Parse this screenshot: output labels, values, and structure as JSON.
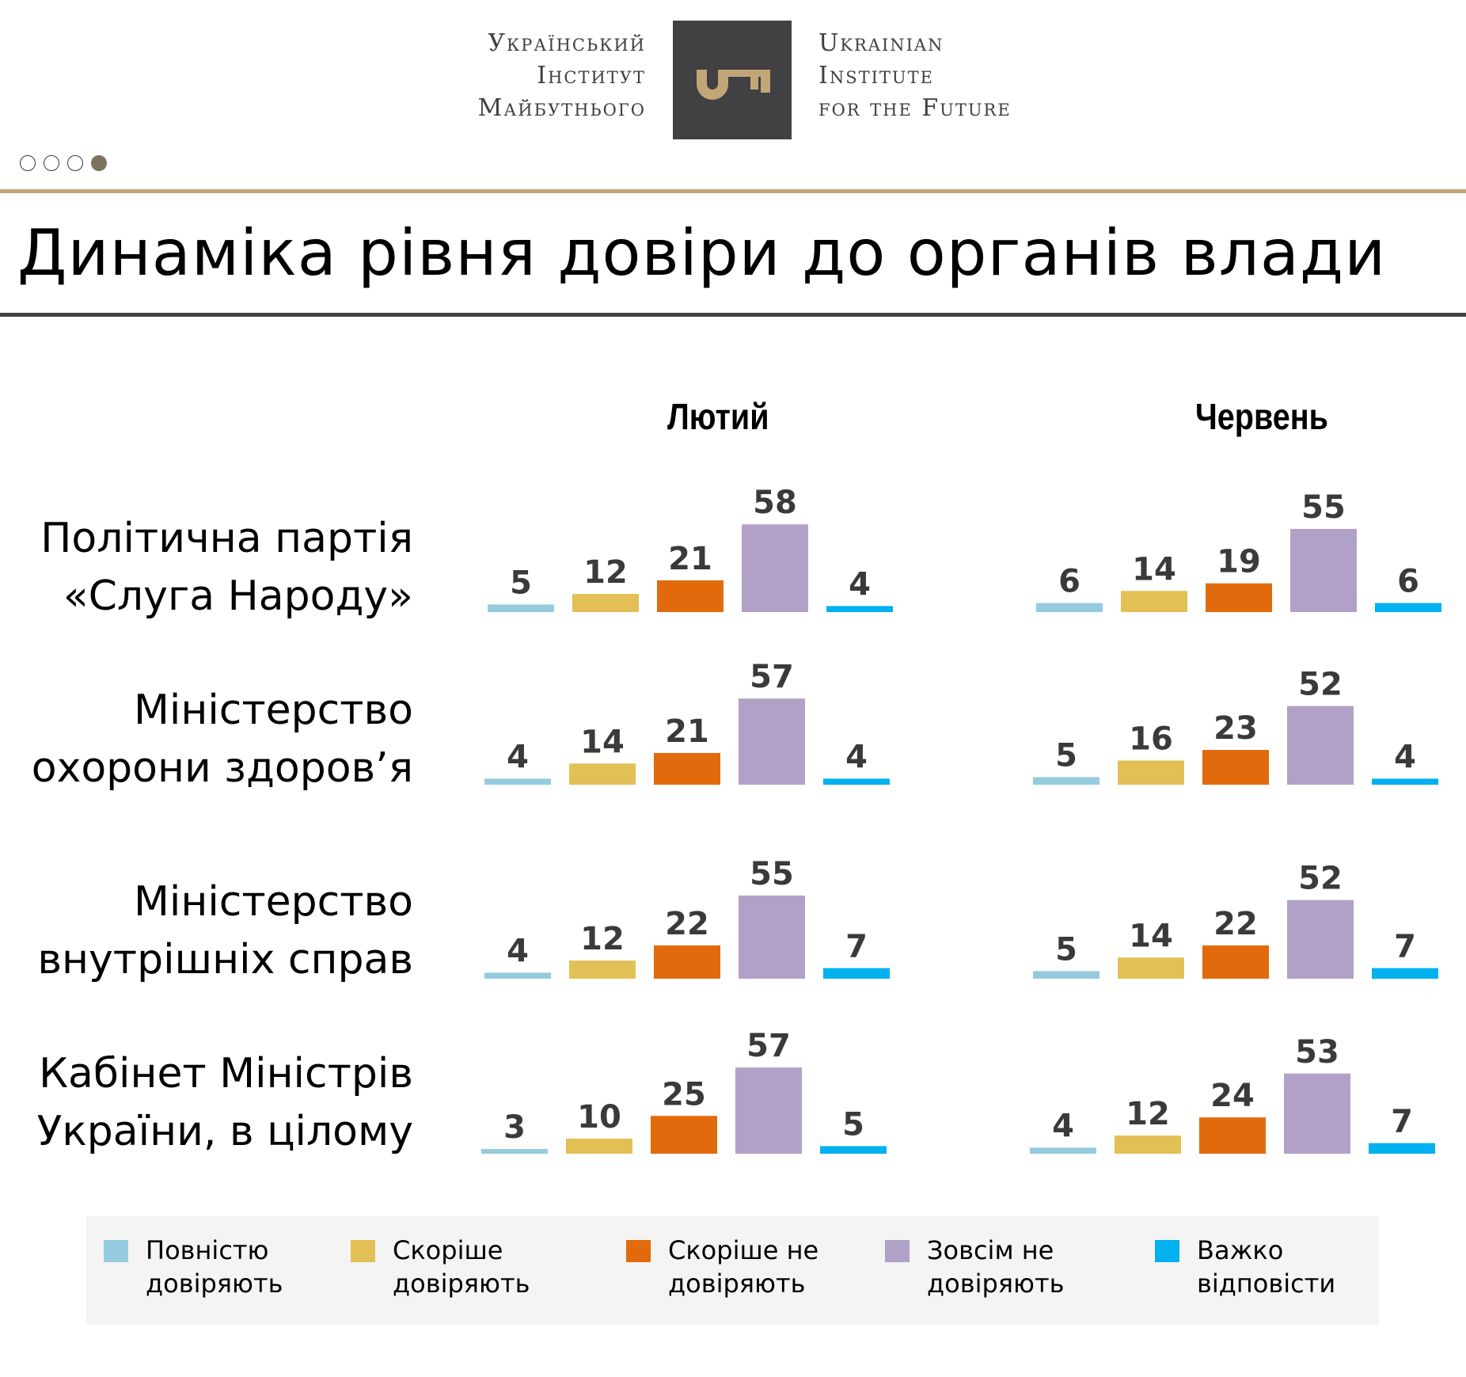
{
  "header": {
    "logo_ua_lines": [
      "Український",
      "Інститут",
      "Майбутнього"
    ],
    "logo_en_lines": [
      "Ukrainian",
      "Institute",
      "for the Future"
    ],
    "logo_icon": "key-icon",
    "brand_colors": {
      "logo_bg": "#414042",
      "gold": "#c2a677"
    }
  },
  "pager": {
    "total": 4,
    "active_index": 3
  },
  "title": "Динаміка рівня довіри до органів влади",
  "chart_data": {
    "type": "bar",
    "title": "Динаміка рівня довіри до органів влади",
    "unit": "%",
    "periods": [
      "Лютий",
      "Червень"
    ],
    "categories": [
      [
        "Політична партія",
        "«Слуга Народу»"
      ],
      [
        "Міністерство",
        "охорони здоров’я"
      ],
      [
        "Міністерство",
        "внутрішніх справ"
      ],
      [
        "Кабінет Міністрів",
        "України, в цілому"
      ]
    ],
    "series": [
      {
        "name": "Повністю довіряють",
        "legend_lines": [
          "Повністю",
          "довіряють"
        ],
        "color": "#94cbde",
        "values": {
          "Лютий": [
            5,
            4,
            4,
            3
          ],
          "Червень": [
            6,
            5,
            5,
            4
          ]
        }
      },
      {
        "name": "Скоріше довіряють",
        "legend_lines": [
          "Скоріше",
          "довіряють"
        ],
        "color": "#e2c055",
        "values": {
          "Лютий": [
            12,
            14,
            12,
            10
          ],
          "Червень": [
            14,
            16,
            14,
            12
          ]
        }
      },
      {
        "name": "Скоріше не довіряють",
        "legend_lines": [
          "Скоріше не",
          "довіряють"
        ],
        "color": "#e16b0c",
        "values": {
          "Лютий": [
            21,
            21,
            22,
            25
          ],
          "Червень": [
            19,
            23,
            22,
            24
          ]
        }
      },
      {
        "name": "Зовсім не довіряють",
        "legend_lines": [
          "Зовсім не",
          "довіряють"
        ],
        "color": "#b1a1c7",
        "values": {
          "Лютий": [
            58,
            57,
            55,
            57
          ],
          "Червень": [
            55,
            52,
            52,
            53
          ]
        }
      },
      {
        "name": "Важко відповісти",
        "legend_lines": [
          "Важко",
          "відповісти"
        ],
        "color": "#00b0ef",
        "values": {
          "Лютий": [
            4,
            4,
            7,
            5
          ],
          "Червень": [
            6,
            4,
            7,
            7
          ]
        }
      }
    ],
    "legend_position": "bottom",
    "grid": false,
    "axes_visible": false,
    "data_labels": true
  }
}
